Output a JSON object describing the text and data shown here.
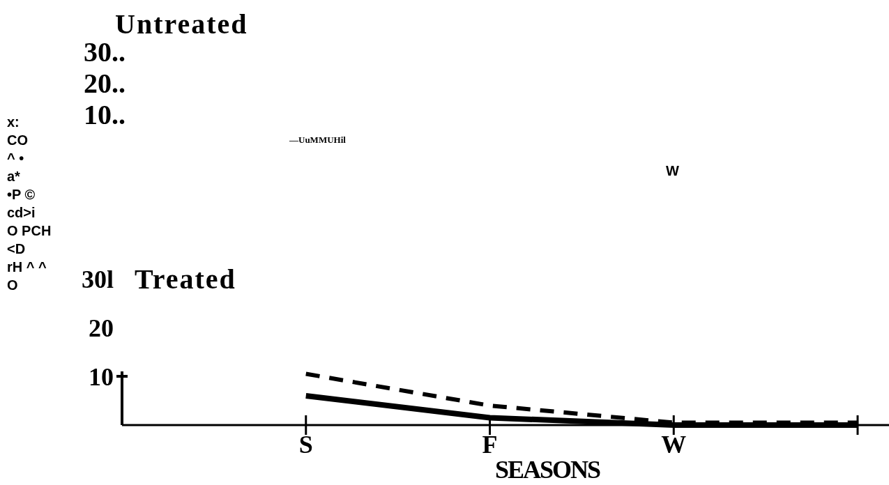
{
  "chart_data": [
    {
      "type": "other",
      "title": "Untreated",
      "annotations": [
        "30..",
        "20..",
        "10..",
        "—UuMMUHil",
        "W"
      ]
    },
    {
      "type": "line",
      "title": "Treated",
      "xlabel": "SEASONS",
      "ylabel": "x:\nCO\n^ •\na*\n•P ©\ncd>i\nO PCH\n<D\nrH ^ ^\nO",
      "categories": [
        null,
        "S",
        "F",
        "W",
        null
      ],
      "ylim": [
        0,
        30
      ],
      "yticks": [
        {
          "value": 10,
          "label": "10"
        },
        {
          "value": 20,
          "label": "20"
        },
        {
          "value": 30,
          "label": "30l"
        }
      ],
      "grid": false,
      "marker": "none",
      "series": [
        {
          "color": "#000000",
          "line_style": "dashed",
          "values": [
            null,
            10.5,
            4,
            0.5,
            0.5
          ]
        },
        {
          "color": "#000000",
          "line_style": "solid",
          "values": [
            null,
            6,
            1.5,
            0,
            0
          ]
        }
      ]
    }
  ]
}
